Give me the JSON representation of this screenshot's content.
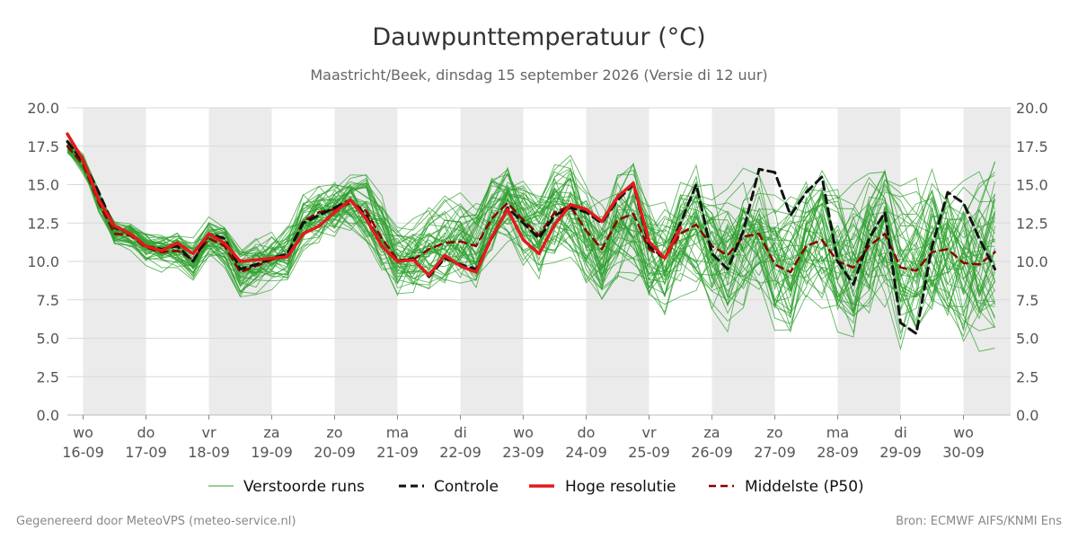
{
  "title": "Dauwpunttemperatuur (°C)",
  "subtitle": "Maastricht/Beek, dinsdag 15 september 2026 (Versie di 12 uur)",
  "footer_left": "Gegenereerd door MeteoVPS (meteo-service.nl)",
  "footer_right": "Bron: ECMWF AIFS/KNMI Ens",
  "colors": {
    "ensemble": "#2ca02c",
    "control": "#111111",
    "high_res": "#e31a1c",
    "p50": "#8b0000",
    "weekend_shade": "#ebebeb",
    "grid": "#d9d9d9"
  },
  "chart_data": {
    "type": "line",
    "title": "Dauwpunttemperatuur (°C)",
    "ylim": [
      0,
      20
    ],
    "yticks": [
      "0.0",
      "2.5",
      "5.0",
      "7.5",
      "10.0",
      "12.5",
      "15.0",
      "17.5",
      "20.0"
    ],
    "grid": true,
    "legend_position": "bottom",
    "x_start_day": 15.75,
    "x_end_day": 30.5,
    "x_step_days": 0.25,
    "shaded_days": [
      16,
      18,
      20,
      22,
      24,
      26,
      28,
      30
    ],
    "day_labels": [
      {
        "day": 16,
        "weekday": "wo",
        "date": "16-09"
      },
      {
        "day": 17,
        "weekday": "do",
        "date": "17-09"
      },
      {
        "day": 18,
        "weekday": "vr",
        "date": "18-09"
      },
      {
        "day": 19,
        "weekday": "za",
        "date": "19-09"
      },
      {
        "day": 20,
        "weekday": "zo",
        "date": "20-09"
      },
      {
        "day": 21,
        "weekday": "ma",
        "date": "21-09"
      },
      {
        "day": 22,
        "weekday": "di",
        "date": "22-09"
      },
      {
        "day": 23,
        "weekday": "wo",
        "date": "23-09"
      },
      {
        "day": 24,
        "weekday": "do",
        "date": "24-09"
      },
      {
        "day": 25,
        "weekday": "vr",
        "date": "25-09"
      },
      {
        "day": 26,
        "weekday": "za",
        "date": "26-09"
      },
      {
        "day": 27,
        "weekday": "zo",
        "date": "27-09"
      },
      {
        "day": 28,
        "weekday": "ma",
        "date": "28-09"
      },
      {
        "day": 29,
        "weekday": "di",
        "date": "29-09"
      },
      {
        "day": 30,
        "weekday": "wo",
        "date": "30-09"
      }
    ],
    "legend": [
      {
        "label": "Verstoorde runs",
        "style": "thin-solid",
        "color": "#2ca02c"
      },
      {
        "label": "Controle",
        "style": "dashed",
        "color": "#111111"
      },
      {
        "label": "Hoge resolutie",
        "style": "thick-solid",
        "color": "#e31a1c"
      },
      {
        "label": "Middelste (P50)",
        "style": "dashed",
        "color": "#8b0000"
      }
    ],
    "series": [
      {
        "name": "Controle",
        "style": "dashed",
        "values": [
          17.8,
          16.5,
          14.5,
          12.2,
          11.8,
          11.0,
          10.8,
          11.0,
          10.0,
          11.8,
          11.5,
          9.5,
          9.8,
          10.2,
          10.5,
          12.5,
          13.0,
          13.5,
          14.0,
          13.0,
          11.0,
          10.0,
          10.2,
          9.0,
          10.2,
          9.8,
          9.5,
          11.5,
          13.5,
          12.5,
          11.5,
          13.0,
          13.5,
          13.2,
          12.5,
          14.0,
          15.0,
          11.0,
          10.2,
          12.5,
          15.0,
          10.5,
          9.5,
          12.0,
          16.0,
          15.8,
          13.0,
          14.5,
          15.5,
          10.0,
          8.5,
          11.5,
          13.2,
          6.0,
          5.3,
          11.0,
          14.5,
          13.8,
          11.5,
          9.5
        ]
      },
      {
        "name": "Hoge resolutie",
        "style": "solid",
        "values": [
          18.3,
          16.6,
          14.0,
          12.3,
          11.8,
          11.0,
          10.7,
          11.2,
          10.5,
          11.8,
          11.2,
          10.0,
          10.1,
          10.2,
          10.3,
          11.8,
          12.3,
          13.2,
          14.0,
          12.8,
          11.0,
          10.0,
          10.1,
          9.1,
          10.4,
          9.7,
          9.3,
          11.6,
          13.4,
          11.4,
          10.5,
          12.4,
          13.7,
          13.4,
          12.6,
          14.2,
          15.1,
          11.3,
          10.2,
          12.2
        ]
      },
      {
        "name": "Middelste (P50)",
        "style": "dashed",
        "values": [
          17.5,
          16.3,
          13.8,
          11.8,
          11.7,
          10.9,
          10.6,
          10.7,
          10.1,
          11.5,
          11.0,
          9.3,
          9.7,
          10.1,
          10.5,
          12.6,
          13.2,
          13.4,
          13.8,
          13.3,
          11.5,
          10.1,
          10.1,
          10.8,
          11.2,
          11.3,
          11.0,
          12.8,
          13.8,
          12.7,
          11.7,
          13.2,
          13.6,
          12.0,
          10.8,
          12.7,
          13.1,
          10.8,
          10.2,
          11.8,
          12.4,
          11.0,
          10.4,
          11.6,
          11.8,
          9.8,
          9.3,
          11.0,
          11.4,
          10.0,
          9.6,
          11.0,
          11.8,
          9.6,
          9.4,
          10.6,
          10.8,
          9.9,
          9.8,
          10.6
        ]
      }
    ],
    "ensemble": {
      "name": "Verstoorde runs",
      "member_count": 50
    }
  }
}
